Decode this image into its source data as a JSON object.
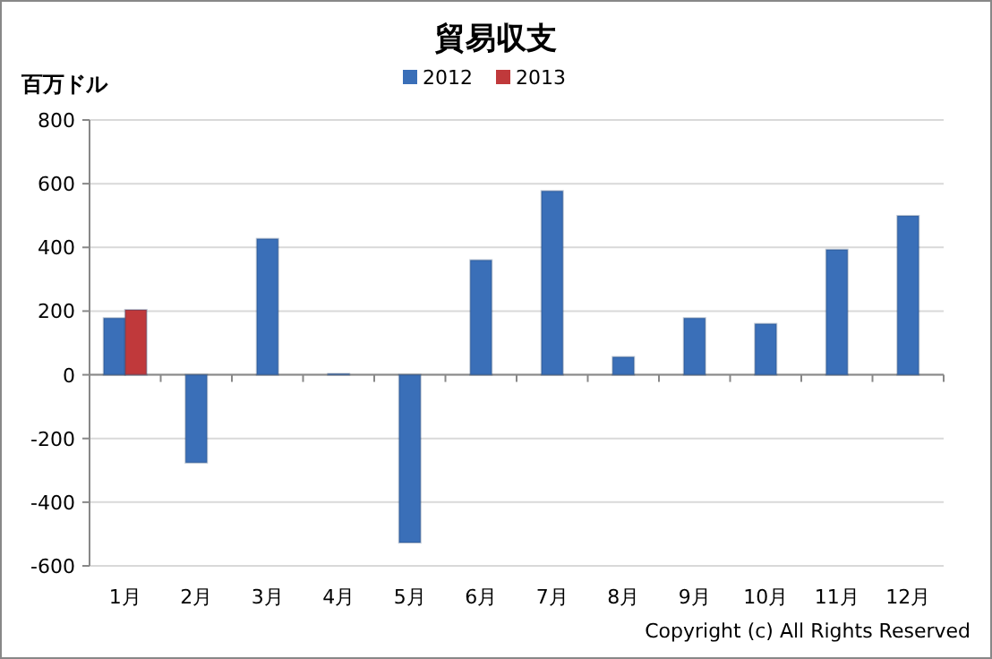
{
  "chart_data": {
    "type": "bar",
    "title": "貿易収支",
    "ylabel": "百万ドル",
    "categories": [
      "1月",
      "2月",
      "3月",
      "4月",
      "5月",
      "6月",
      "7月",
      "8月",
      "9月",
      "10月",
      "11月",
      "12月"
    ],
    "series": [
      {
        "name": "2012",
        "color": "#3a6fb8",
        "values": [
          178,
          -276,
          427,
          3,
          -527,
          360,
          577,
          56,
          178,
          160,
          393,
          499
        ]
      },
      {
        "name": "2013",
        "color": "#c0393b",
        "values": [
          204,
          null,
          null,
          null,
          null,
          null,
          null,
          null,
          null,
          null,
          null,
          null
        ]
      }
    ],
    "ylim": [
      -600,
      800
    ],
    "yticks": [
      -600,
      -400,
      -200,
      0,
      200,
      400,
      600,
      800
    ],
    "grid": "y",
    "legend": "top",
    "annotations": [
      "Copyright (c) All Rights Reserved"
    ]
  }
}
